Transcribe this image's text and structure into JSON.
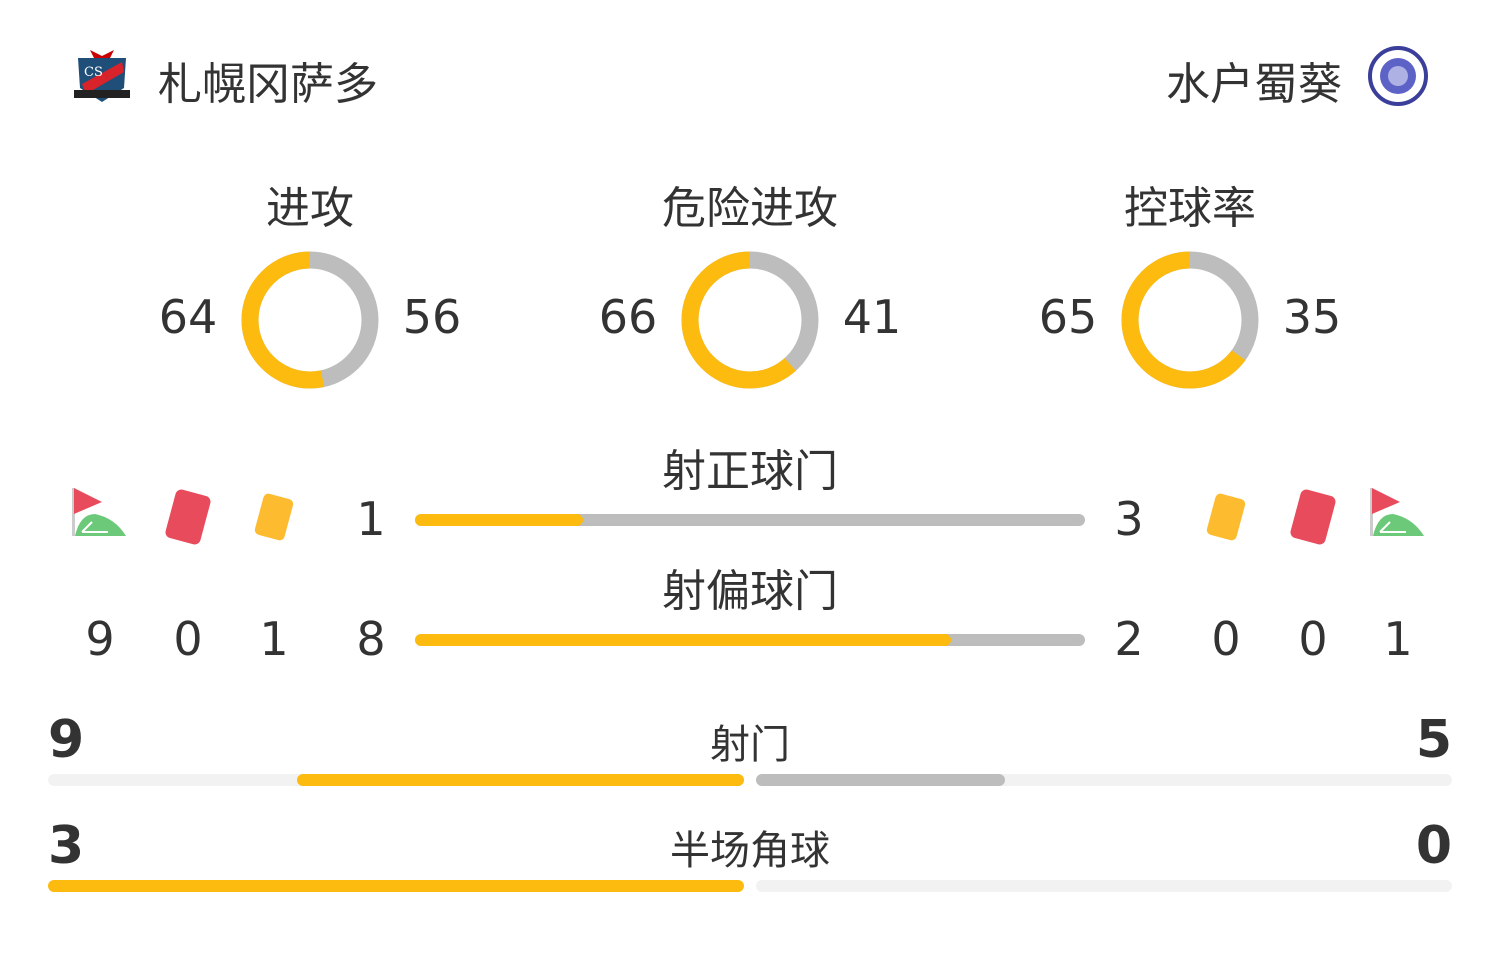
{
  "home": {
    "name": "札幌冈萨多",
    "logo_text": "CS CONSADOLE SAPPORO"
  },
  "away": {
    "name": "水户蜀葵",
    "logo_text": "FC MITO HOLLY HOCK"
  },
  "colors": {
    "home": "#fdbb0f",
    "away": "#bdbdbd",
    "red_card": "#e84c5c",
    "yellow_card": "#fdbb2f",
    "corner_flag": "#e84c5c",
    "corner_field": "#6cc97a"
  },
  "donuts": [
    {
      "label": "进攻",
      "home": 64,
      "away": 56
    },
    {
      "label": "危险进攻",
      "home": 66,
      "away": 41
    },
    {
      "label": "控球率",
      "home": 65,
      "away": 35
    }
  ],
  "bars": [
    {
      "label": "射正球门",
      "home": 1,
      "away": 3
    },
    {
      "label": "射偏球门",
      "home": 8,
      "away": 2
    }
  ],
  "cards": {
    "home": {
      "corners": 9,
      "red": 0,
      "yellow": 1
    },
    "away": {
      "yellow": 0,
      "red": 0,
      "corners": 1
    }
  },
  "split_bars": [
    {
      "label": "射门",
      "home": 9,
      "away": 5
    },
    {
      "label": "半场角球",
      "home": 3,
      "away": 0
    }
  ]
}
